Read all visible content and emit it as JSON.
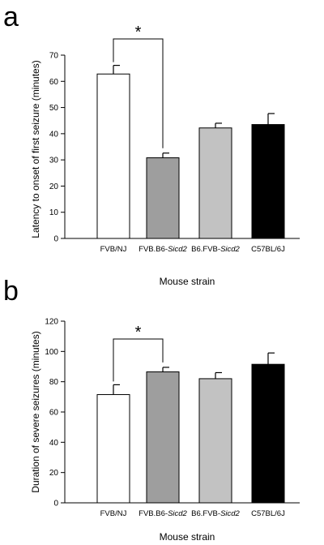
{
  "chart_data": [
    {
      "type": "bar",
      "panel": "a",
      "categories": [
        {
          "prefix": "FVB/NJ",
          "italic": ""
        },
        {
          "prefix": "FVB.B6-",
          "italic": "Sicd2"
        },
        {
          "prefix": "B6.FVB-",
          "italic": "Sicd2"
        },
        {
          "prefix": "C57BL/6J",
          "italic": ""
        }
      ],
      "values": [
        62.8,
        30.8,
        42.2,
        43.5
      ],
      "errors": [
        3.3,
        1.8,
        1.8,
        4.2
      ],
      "colors": [
        "#ffffff",
        "#9e9e9e",
        "#c2c2c2",
        "#000000"
      ],
      "ylabel": "Latency to onset of first seizure (minutes)",
      "xlabel": "Mouse strain",
      "ylim": [
        0,
        70
      ],
      "yticks": [
        0,
        10,
        20,
        30,
        40,
        50,
        60,
        70
      ],
      "significance": {
        "from": 0,
        "to": 1,
        "label": "*"
      }
    },
    {
      "type": "bar",
      "panel": "b",
      "categories": [
        {
          "prefix": "FVB/NJ",
          "italic": ""
        },
        {
          "prefix": "FVB.B6-",
          "italic": "Sicd2"
        },
        {
          "prefix": "B6.FVB-",
          "italic": "Sicd2"
        },
        {
          "prefix": "C57BL/6J",
          "italic": ""
        }
      ],
      "values": [
        71.5,
        86.5,
        82.0,
        91.5
      ],
      "errors": [
        6.5,
        3.0,
        4.0,
        7.5
      ],
      "colors": [
        "#ffffff",
        "#9e9e9e",
        "#c2c2c2",
        "#000000"
      ],
      "ylabel": "Duration of severe seizures (minutes)",
      "xlabel": "Mouse strain",
      "ylim": [
        0,
        120
      ],
      "yticks": [
        0,
        20,
        40,
        60,
        80,
        100,
        120
      ],
      "significance": {
        "from": 0,
        "to": 1,
        "label": "*"
      }
    }
  ]
}
